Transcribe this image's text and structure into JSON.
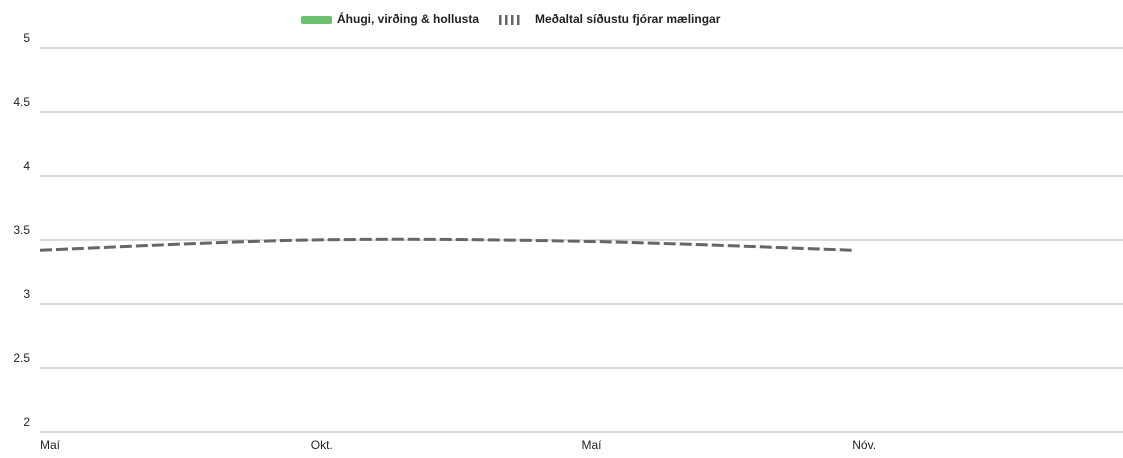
{
  "chart_data": {
    "type": "line",
    "categories": [
      "Maí",
      "Okt.",
      "Maí",
      "Nóv.",
      null
    ],
    "series": [
      {
        "name": "Áhugi, virðing & hollusta",
        "color": "#6cc070",
        "values": [
          null,
          null,
          null,
          null,
          null
        ]
      },
      {
        "name": "Meðaltal síðustu fjórar mælingar",
        "color": "#666666",
        "dashed": true,
        "values": [
          3.42,
          3.5,
          3.49,
          3.42,
          null
        ]
      }
    ],
    "ylim": [
      2,
      5
    ],
    "yticks": [
      2,
      2.5,
      3,
      3.5,
      4,
      4.5,
      5
    ],
    "grid": true,
    "legend": "top"
  }
}
